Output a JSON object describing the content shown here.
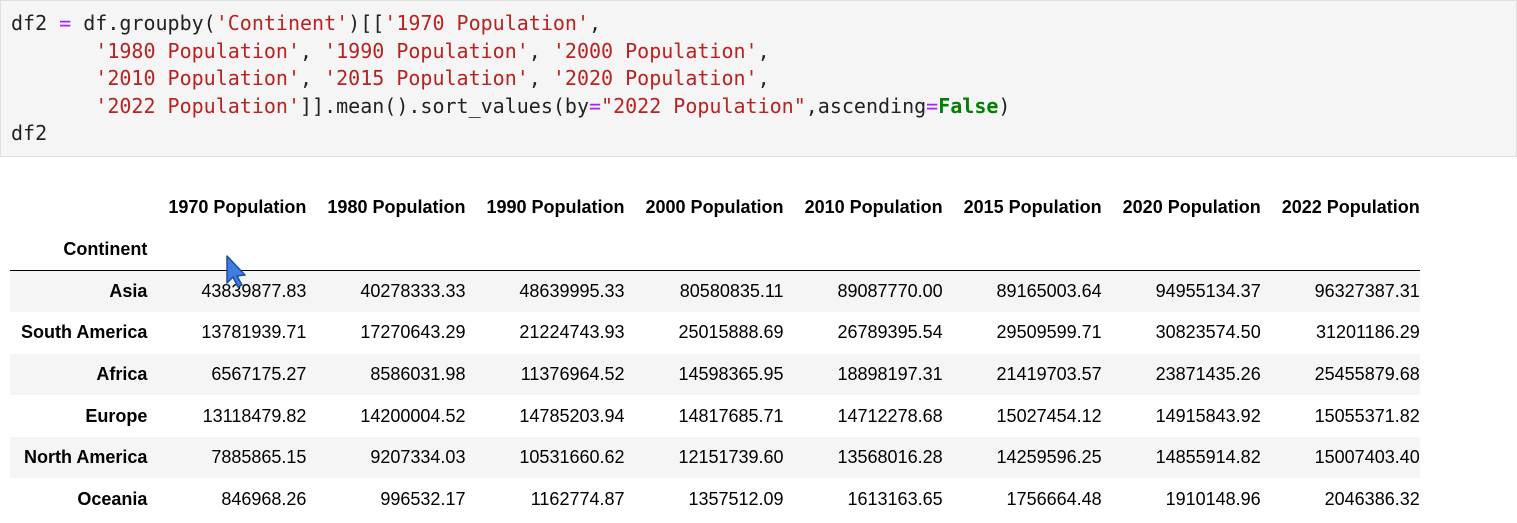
{
  "code_cell": {
    "lines": [
      [
        {
          "t": "df2 ",
          "c": ""
        },
        {
          "t": "=",
          "c": "op"
        },
        {
          "t": " df.groupby(",
          "c": ""
        },
        {
          "t": "'Continent'",
          "c": "str"
        },
        {
          "t": ")[[",
          "c": ""
        },
        {
          "t": "'1970 Population'",
          "c": "str"
        },
        {
          "t": ",",
          "c": ""
        }
      ],
      [
        {
          "t": "       ",
          "c": ""
        },
        {
          "t": "'1980 Population'",
          "c": "str"
        },
        {
          "t": ", ",
          "c": ""
        },
        {
          "t": "'1990 Population'",
          "c": "str"
        },
        {
          "t": ", ",
          "c": ""
        },
        {
          "t": "'2000 Population'",
          "c": "str"
        },
        {
          "t": ",",
          "c": ""
        }
      ],
      [
        {
          "t": "       ",
          "c": ""
        },
        {
          "t": "'2010 Population'",
          "c": "str"
        },
        {
          "t": ", ",
          "c": ""
        },
        {
          "t": "'2015 Population'",
          "c": "str"
        },
        {
          "t": ", ",
          "c": ""
        },
        {
          "t": "'2020 Population'",
          "c": "str"
        },
        {
          "t": ",",
          "c": ""
        }
      ],
      [
        {
          "t": "       ",
          "c": ""
        },
        {
          "t": "'2022 Population'",
          "c": "str"
        },
        {
          "t": "]].mean().sort_values(by",
          "c": ""
        },
        {
          "t": "=",
          "c": "op"
        },
        {
          "t": "\"2022 Population\"",
          "c": "str"
        },
        {
          "t": ",ascending",
          "c": ""
        },
        {
          "t": "=",
          "c": "op"
        },
        {
          "t": "False",
          "c": "kw"
        },
        {
          "t": ")",
          "c": ""
        }
      ],
      [
        {
          "t": "df2",
          "c": ""
        }
      ]
    ]
  },
  "table": {
    "index_name": "Continent",
    "columns": [
      "1970 Population",
      "1980 Population",
      "1990 Population",
      "2000 Population",
      "2010 Population",
      "2015 Population",
      "2020 Population",
      "2022 Population"
    ],
    "rows": [
      {
        "label": "Asia",
        "values": [
          "43839877.83",
          "40278333.33",
          "48639995.33",
          "80580835.11",
          "89087770.00",
          "89165003.64",
          "94955134.37",
          "96327387.31"
        ]
      },
      {
        "label": "South America",
        "values": [
          "13781939.71",
          "17270643.29",
          "21224743.93",
          "25015888.69",
          "26789395.54",
          "29509599.71",
          "30823574.50",
          "31201186.29"
        ]
      },
      {
        "label": "Africa",
        "values": [
          "6567175.27",
          "8586031.98",
          "11376964.52",
          "14598365.95",
          "18898197.31",
          "21419703.57",
          "23871435.26",
          "25455879.68"
        ]
      },
      {
        "label": "Europe",
        "values": [
          "13118479.82",
          "14200004.52",
          "14785203.94",
          "14817685.71",
          "14712278.68",
          "15027454.12",
          "14915843.92",
          "15055371.82"
        ]
      },
      {
        "label": "North America",
        "values": [
          "7885865.15",
          "9207334.03",
          "10531660.62",
          "12151739.60",
          "13568016.28",
          "14259596.25",
          "14855914.82",
          "15007403.40"
        ]
      },
      {
        "label": "Oceania",
        "values": [
          "846968.26",
          "996532.17",
          "1162774.87",
          "1357512.09",
          "1613163.65",
          "1756664.48",
          "1910148.96",
          "2046386.32"
        ]
      }
    ]
  },
  "colors": {
    "string": "#ba2121",
    "operator": "#aa22ff",
    "keyword": "#008000",
    "cell_background": "#f5f5f5",
    "cursor_fill": "#3d7ee0"
  },
  "icons": {
    "cursor": "mouse-pointer-icon"
  }
}
